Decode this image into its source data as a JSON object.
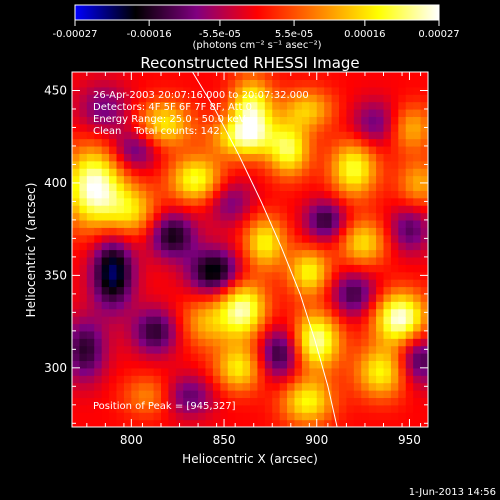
{
  "chart_data": {
    "type": "heatmap",
    "title": "Reconstructed RHESSI Image",
    "xlabel": "Heliocentric X (arcsec)",
    "ylabel": "Heliocentric Y (arcsec)",
    "xlim": [
      768,
      960
    ],
    "ylim": [
      268,
      460
    ],
    "xticks": [
      800,
      850,
      900,
      950
    ],
    "yticks": [
      300,
      350,
      400,
      450
    ],
    "colorbar": {
      "min": -0.00027,
      "max": 0.00027,
      "tick_values": [
        -0.00027,
        -0.00016,
        -5.5e-05,
        5.5e-05,
        0.00016,
        0.00027
      ],
      "tick_labels": [
        "-0.00027",
        "-0.00016",
        "-5.5e-05",
        "5.5e-05",
        "0.00016",
        "0.00027"
      ],
      "units_label": "(photons cm⁻² s⁻¹ asec⁻²)",
      "colors": [
        "#0000ff",
        "#000000",
        "#800080",
        "#ff0000",
        "#ff8000",
        "#ffff00",
        "#ffffff"
      ]
    },
    "annotations": [
      "26-Apr-2003 20:07:16.000 to 20:07:32.000",
      "Detectors: 4F 5F 6F 7F 8F, Att 0",
      "Energy Range: 25.0 - 50.0 keV",
      "Clean    Total counts: 142."
    ],
    "peak_label": "Position of Peak = [945,327]",
    "peak": {
      "x": 945,
      "y": 327
    },
    "limb_curve": [
      {
        "x": 833,
        "y": 460
      },
      {
        "x": 845,
        "y": 440
      },
      {
        "x": 858,
        "y": 415
      },
      {
        "x": 870,
        "y": 390
      },
      {
        "x": 881,
        "y": 365
      },
      {
        "x": 891,
        "y": 340
      },
      {
        "x": 899,
        "y": 315
      },
      {
        "x": 906,
        "y": 290
      },
      {
        "x": 911,
        "y": 268
      }
    ],
    "sources": [
      {
        "x": 780,
        "y": 398,
        "amp": 0.00027,
        "sx": 11,
        "sy": 15
      },
      {
        "x": 800,
        "y": 385,
        "amp": 0.00015,
        "sx": 10,
        "sy": 10
      },
      {
        "x": 790,
        "y": 352,
        "amp": -0.00022,
        "sx": 8,
        "sy": 14
      },
      {
        "x": 775,
        "y": 310,
        "amp": -0.00015,
        "sx": 8,
        "sy": 12
      },
      {
        "x": 810,
        "y": 285,
        "amp": 0.0001,
        "sx": 10,
        "sy": 8
      },
      {
        "x": 830,
        "y": 285,
        "amp": -0.00012,
        "sx": 10,
        "sy": 8
      },
      {
        "x": 818,
        "y": 432,
        "amp": 0.00017,
        "sx": 10,
        "sy": 9
      },
      {
        "x": 802,
        "y": 418,
        "amp": -0.00012,
        "sx": 9,
        "sy": 8
      },
      {
        "x": 835,
        "y": 402,
        "amp": 0.0002,
        "sx": 10,
        "sy": 9
      },
      {
        "x": 822,
        "y": 372,
        "amp": -0.00017,
        "sx": 9,
        "sy": 9
      },
      {
        "x": 845,
        "y": 352,
        "amp": -0.0002,
        "sx": 10,
        "sy": 9
      },
      {
        "x": 840,
        "y": 325,
        "amp": 0.00012,
        "sx": 10,
        "sy": 10
      },
      {
        "x": 813,
        "y": 320,
        "amp": -0.00015,
        "sx": 9,
        "sy": 9
      },
      {
        "x": 865,
        "y": 440,
        "amp": 0.00022,
        "sx": 8,
        "sy": 12
      },
      {
        "x": 860,
        "y": 425,
        "amp": 0.00018,
        "sx": 12,
        "sy": 8
      },
      {
        "x": 853,
        "y": 390,
        "amp": -0.0001,
        "sx": 9,
        "sy": 9
      },
      {
        "x": 860,
        "y": 332,
        "amp": 0.00024,
        "sx": 9,
        "sy": 11
      },
      {
        "x": 858,
        "y": 300,
        "amp": 0.00017,
        "sx": 9,
        "sy": 9
      },
      {
        "x": 872,
        "y": 368,
        "amp": 0.00018,
        "sx": 8,
        "sy": 10
      },
      {
        "x": 880,
        "y": 308,
        "amp": -0.00016,
        "sx": 8,
        "sy": 10
      },
      {
        "x": 885,
        "y": 418,
        "amp": 0.0002,
        "sx": 8,
        "sy": 10
      },
      {
        "x": 895,
        "y": 440,
        "amp": 0.00014,
        "sx": 10,
        "sy": 8
      },
      {
        "x": 896,
        "y": 352,
        "amp": 0.00018,
        "sx": 8,
        "sy": 9
      },
      {
        "x": 900,
        "y": 315,
        "amp": 0.00024,
        "sx": 9,
        "sy": 11
      },
      {
        "x": 895,
        "y": 282,
        "amp": 0.00018,
        "sx": 10,
        "sy": 9
      },
      {
        "x": 905,
        "y": 380,
        "amp": -0.00015,
        "sx": 8,
        "sy": 8
      },
      {
        "x": 920,
        "y": 408,
        "amp": 0.0002,
        "sx": 9,
        "sy": 11
      },
      {
        "x": 933,
        "y": 432,
        "amp": -0.00012,
        "sx": 10,
        "sy": 9
      },
      {
        "x": 925,
        "y": 368,
        "amp": 0.00016,
        "sx": 9,
        "sy": 9
      },
      {
        "x": 920,
        "y": 340,
        "amp": -0.00014,
        "sx": 9,
        "sy": 9
      },
      {
        "x": 945,
        "y": 327,
        "amp": 0.00027,
        "sx": 10,
        "sy": 10
      },
      {
        "x": 935,
        "y": 298,
        "amp": 0.00018,
        "sx": 10,
        "sy": 10
      },
      {
        "x": 955,
        "y": 305,
        "amp": -0.00015,
        "sx": 8,
        "sy": 10
      },
      {
        "x": 950,
        "y": 375,
        "amp": -0.00012,
        "sx": 8,
        "sy": 9
      },
      {
        "x": 950,
        "y": 430,
        "amp": 0.00014,
        "sx": 9,
        "sy": 9
      },
      {
        "x": 955,
        "y": 400,
        "amp": 0.00012,
        "sx": 8,
        "sy": 9
      },
      {
        "x": 785,
        "y": 440,
        "amp": -0.0001,
        "sx": 10,
        "sy": 10
      }
    ]
  },
  "footer": {
    "timestamp": "1-Jun-2013 14:56"
  }
}
